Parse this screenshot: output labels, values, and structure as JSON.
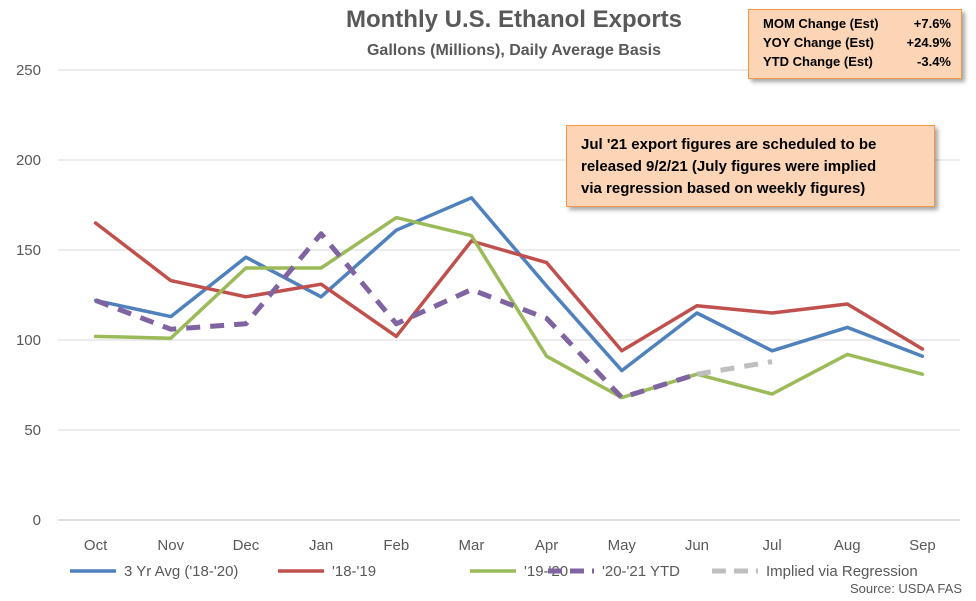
{
  "chart_data": {
    "type": "line",
    "title": "Monthly U.S. Ethanol Exports",
    "subtitle": "Gallons (Millions), Daily Average Basis",
    "categories": [
      "Oct",
      "Nov",
      "Dec",
      "Jan",
      "Feb",
      "Mar",
      "Apr",
      "May",
      "Jun",
      "Jul",
      "Aug",
      "Sep"
    ],
    "ylim": [
      0,
      250
    ],
    "yticks": [
      0,
      50,
      100,
      150,
      200,
      250
    ],
    "grid": true,
    "legend_position": "bottom",
    "series": [
      {
        "name": "3 Yr Avg ('18-'20)",
        "color": "#4f81bd",
        "style": "solid",
        "values": [
          122,
          113,
          146,
          124,
          161,
          179,
          130,
          83,
          115,
          94,
          107,
          91
        ]
      },
      {
        "name": "'18-'19",
        "color": "#c0504d",
        "style": "solid",
        "values": [
          165,
          133,
          124,
          131,
          102,
          155,
          143,
          94,
          119,
          115,
          120,
          95
        ]
      },
      {
        "name": "'19-'20",
        "color": "#9bbb59",
        "style": "solid",
        "values": [
          102,
          101,
          140,
          140,
          168,
          158,
          91,
          68,
          81,
          70,
          92,
          81
        ]
      },
      {
        "name": "'20-'21 YTD",
        "color": "#8064a2",
        "style": "dashed",
        "values": [
          122,
          106,
          109,
          159,
          109,
          128,
          112,
          68,
          81,
          null,
          null,
          null
        ]
      },
      {
        "name": "Implied via Regression",
        "color": "#bfbfbf",
        "style": "dashed",
        "values": [
          null,
          null,
          null,
          null,
          null,
          null,
          null,
          null,
          81,
          88,
          null,
          null
        ]
      }
    ]
  },
  "stats_box": {
    "rows": [
      {
        "label": "MOM Change (Est)",
        "value": "+7.6%"
      },
      {
        "label": "YOY Change (Est)",
        "value": "+24.9%"
      },
      {
        "label": "YTD Change (Est)",
        "value": "-3.4%"
      }
    ]
  },
  "note": {
    "lines": [
      "Jul '21 export figures are scheduled to be",
      "released 9/2/21 (July figures were implied",
      "via regression based on weekly figures)"
    ]
  },
  "source": "Source: USDA FAS"
}
